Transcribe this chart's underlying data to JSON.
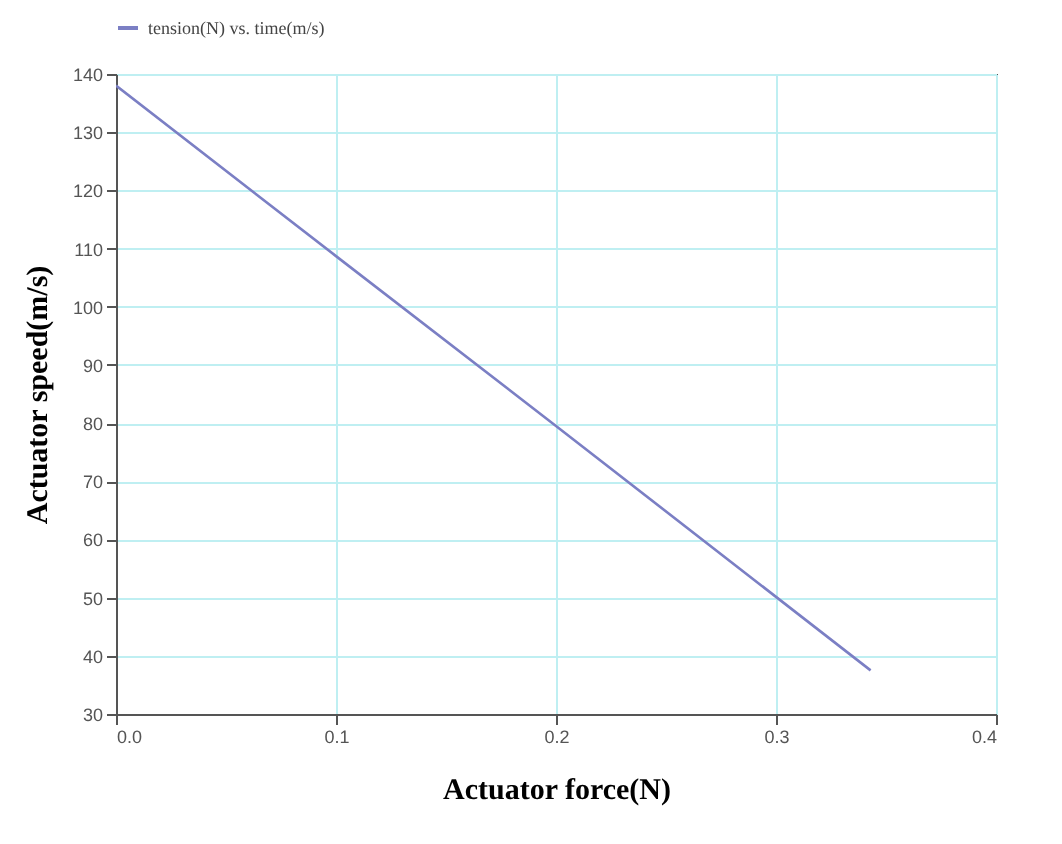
{
  "chart_data": {
    "type": "line",
    "xlabel": "Actuator force(N)",
    "ylabel": "Actuator speed(m/s)",
    "x": [
      0,
      0.1,
      0.2,
      0.343
    ],
    "series": [
      {
        "name": "tension(N) vs. time(m/s)",
        "color": "#7b7fc4",
        "values": [
          138,
          108.7,
          79.5,
          37.5
        ]
      }
    ],
    "xlim": [
      0,
      0.4
    ],
    "xticks": [
      {
        "value": 0,
        "label": "0.0"
      },
      0.1,
      0.2,
      0.3,
      0.4
    ],
    "ylim": [
      30,
      140
    ],
    "yticks": [
      30,
      40,
      50,
      60,
      70,
      80,
      90,
      100,
      110,
      120,
      130,
      140
    ],
    "grid": true,
    "legend": "top left",
    "marker": "none",
    "line_style": "solid"
  }
}
